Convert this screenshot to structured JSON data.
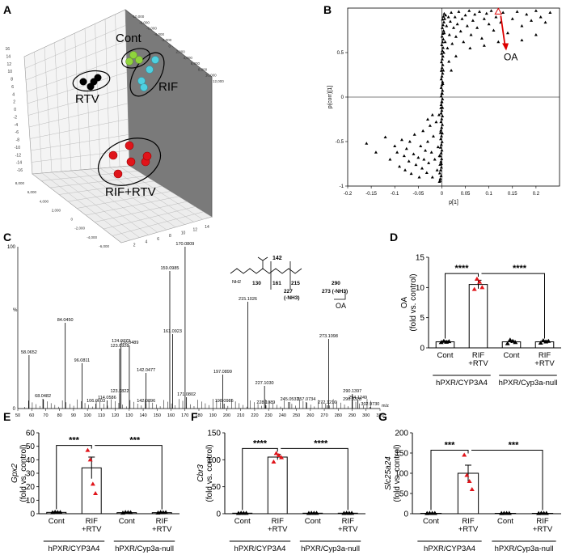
{
  "panel_labels": [
    "A",
    "B",
    "C",
    "D",
    "E",
    "F",
    "G"
  ],
  "panel_a": {
    "groups": [
      {
        "label": "Cont",
        "color": "#8fd43c"
      },
      {
        "label": "RIF",
        "color": "#4fd0e0"
      },
      {
        "label": "RTV",
        "color": "#000000"
      },
      {
        "label": "RIF+RTV",
        "color": "#e0141a"
      }
    ],
    "tick_labels_x": [
      "-10,000",
      "-8,000",
      "-6,000",
      "-4,000",
      "-2,000",
      "0",
      "2,000",
      "4,000",
      "6,000",
      "8,000",
      "10,000",
      "12,000"
    ],
    "tick_labels_y": [
      "16",
      "14",
      "12",
      "10",
      "8",
      "6",
      "4",
      "2",
      "0",
      "-2",
      "-4",
      "-6",
      "-8",
      "-10",
      "-12",
      "-14",
      "-16"
    ],
    "tick_labels_z": [
      "8,000",
      "6,000",
      "4,000",
      "2,000",
      "0",
      "-2,000",
      "-4,000",
      "-6,000"
    ]
  },
  "chart_data": [
    {
      "panel": "B",
      "type": "scatter",
      "title": "",
      "xlabel": "p[1]",
      "ylabel": "p(corr)[1]",
      "xlim": [
        -0.2,
        0.25
      ],
      "ylim": [
        -1,
        1
      ],
      "x_ticks": [
        "-0.2",
        "-0.15",
        "-0.1",
        "-0.05",
        "0",
        "0.05",
        "0.1",
        "0.15",
        "0.2"
      ],
      "y_ticks": [
        "-1",
        "-0.5",
        "0",
        "0.5"
      ],
      "annotation": "OA",
      "highlight": {
        "x": 0.12,
        "y": 0.96
      },
      "points": [
        [
          -0.16,
          -0.52
        ],
        [
          -0.14,
          -0.62
        ],
        [
          -0.12,
          -0.45
        ],
        [
          -0.11,
          -0.7
        ],
        [
          -0.1,
          -0.55
        ],
        [
          -0.095,
          -0.62
        ],
        [
          -0.09,
          -0.78
        ],
        [
          -0.085,
          -0.48
        ],
        [
          -0.08,
          -0.66
        ],
        [
          -0.078,
          -0.82
        ],
        [
          -0.075,
          -0.58
        ],
        [
          -0.07,
          -0.72
        ],
        [
          -0.068,
          -0.5
        ],
        [
          -0.065,
          -0.86
        ],
        [
          -0.06,
          -0.64
        ],
        [
          -0.058,
          -0.42
        ],
        [
          -0.055,
          -0.76
        ],
        [
          -0.05,
          -0.68
        ],
        [
          -0.048,
          -0.9
        ],
        [
          -0.045,
          -0.55
        ],
        [
          -0.042,
          -0.8
        ],
        [
          -0.04,
          -0.38
        ],
        [
          -0.038,
          -0.7
        ],
        [
          -0.035,
          -0.6
        ],
        [
          -0.032,
          -0.85
        ],
        [
          -0.03,
          -0.5
        ],
        [
          -0.028,
          -0.74
        ],
        [
          -0.025,
          -0.32
        ],
        [
          -0.022,
          -0.62
        ],
        [
          -0.02,
          -0.9
        ],
        [
          -0.018,
          -0.44
        ],
        [
          -0.015,
          -0.7
        ],
        [
          -0.012,
          -0.28
        ],
        [
          -0.01,
          -0.82
        ],
        [
          -0.008,
          -0.56
        ],
        [
          -0.006,
          -0.2
        ],
        [
          -0.005,
          -0.66
        ],
        [
          -0.004,
          -0.94
        ],
        [
          -0.003,
          -0.4
        ],
        [
          -0.002,
          -0.12
        ],
        [
          -0.001,
          -0.75
        ],
        [
          0,
          -0.05
        ],
        [
          0.001,
          0.04
        ],
        [
          0.002,
          0.15
        ],
        [
          0.003,
          0.3
        ],
        [
          0.004,
          0.5
        ],
        [
          0.005,
          0.72
        ],
        [
          0.006,
          0.88
        ],
        [
          0.007,
          0.62
        ],
        [
          0.008,
          0.92
        ],
        [
          0.01,
          0.8
        ],
        [
          0.012,
          0.55
        ],
        [
          0.014,
          0.9
        ],
        [
          0.016,
          0.7
        ],
        [
          0.018,
          0.85
        ],
        [
          0.02,
          0.95
        ],
        [
          0.022,
          0.6
        ],
        [
          0.025,
          0.78
        ],
        [
          0.028,
          0.9
        ],
        [
          0.03,
          0.68
        ],
        [
          0.033,
          0.82
        ],
        [
          0.036,
          0.96
        ],
        [
          0.04,
          0.74
        ],
        [
          0.043,
          0.88
        ],
        [
          0.046,
          0.62
        ],
        [
          0.05,
          0.92
        ],
        [
          0.054,
          0.8
        ],
        [
          0.058,
          0.97
        ],
        [
          0.062,
          0.7
        ],
        [
          0.066,
          0.86
        ],
        [
          0.07,
          0.93
        ],
        [
          0.075,
          0.78
        ],
        [
          0.08,
          0.96
        ],
        [
          0.085,
          0.66
        ],
        [
          0.09,
          0.88
        ],
        [
          0.095,
          0.94
        ],
        [
          0.1,
          0.82
        ],
        [
          0.105,
          0.97
        ],
        [
          0.11,
          0.75
        ],
        [
          0.115,
          0.9
        ],
        [
          0.125,
          0.84
        ],
        [
          0.13,
          0.95
        ],
        [
          0.14,
          0.72
        ],
        [
          0.15,
          0.88
        ],
        [
          0.16,
          0.96
        ],
        [
          0.17,
          0.8
        ],
        [
          0.18,
          0.93
        ],
        [
          0.19,
          0.86
        ],
        [
          0.2,
          0.97
        ],
        [
          0.21,
          0.9
        ],
        [
          0.22,
          0.84
        ],
        [
          0.23,
          0.95
        ],
        [
          0.015,
          0.4
        ],
        [
          0.02,
          0.3
        ],
        [
          0.03,
          0.46
        ],
        [
          -0.02,
          -0.2
        ],
        [
          -0.03,
          -0.25
        ],
        [
          0.06,
          0.55
        ],
        [
          0.09,
          0.58
        ],
        [
          0.12,
          0.62
        ],
        [
          0.17,
          0.64
        ],
        [
          0.2,
          0.7
        ]
      ]
    },
    {
      "panel": "C",
      "type": "bar",
      "title": "",
      "xlabel": "m/z",
      "ylabel": "%",
      "xlim": [
        50,
        310
      ],
      "ylim": [
        0,
        100
      ],
      "x_ticks": [
        "50",
        "60",
        "70",
        "80",
        "90",
        "100",
        "110",
        "120",
        "130",
        "140",
        "150",
        "160",
        "170",
        "180",
        "190",
        "200",
        "210",
        "220",
        "230",
        "240",
        "250",
        "260",
        "270",
        "280",
        "290",
        "300",
        "310"
      ],
      "y_ticks": [
        "0",
        "100"
      ],
      "peaks": [
        {
          "mz": 58.0652,
          "rel": 33,
          "label": "58.0652"
        },
        {
          "mz": 68.0482,
          "rel": 6,
          "label": "68.0482"
        },
        {
          "mz": 84.045,
          "rel": 53,
          "label": "84.0450"
        },
        {
          "mz": 96.0811,
          "rel": 28,
          "label": "96.0811"
        },
        {
          "mz": 106.0603,
          "rel": 3,
          "label": "106.0603"
        },
        {
          "mz": 114.0586,
          "rel": 5,
          "label": "114.0586"
        },
        {
          "mz": 123.0822,
          "rel": 9,
          "label": "123.0822"
        },
        {
          "mz": 123.0928,
          "rel": 37,
          "label": "123.0928"
        },
        {
          "mz": 124.0773,
          "rel": 40,
          "label": "124.0773"
        },
        {
          "mz": 130.0489,
          "rel": 39,
          "label": "130.0489"
        },
        {
          "mz": 142.0477,
          "rel": 22,
          "label": "142.0477"
        },
        {
          "mz": 142.0896,
          "rel": 3,
          "label": "142.0896"
        },
        {
          "mz": 159.0985,
          "rel": 85,
          "label": "159.0985"
        },
        {
          "mz": 161.0923,
          "rel": 46,
          "label": "161.0923"
        },
        {
          "mz": 170.0809,
          "rel": 100,
          "label": "170.0809"
        },
        {
          "mz": 171.0802,
          "rel": 7,
          "label": "171.0802"
        },
        {
          "mz": 197.0899,
          "rel": 21,
          "label": "197.0899"
        },
        {
          "mz": 198.0985,
          "rel": 3,
          "label": "198.0985"
        },
        {
          "mz": 215.1026,
          "rel": 66,
          "label": "215.1026"
        },
        {
          "mz": 227.103,
          "rel": 14,
          "label": "227.1030"
        },
        {
          "mz": 228.1089,
          "rel": 2,
          "label": "228.1089"
        },
        {
          "mz": 245.0533,
          "rel": 4,
          "label": "245.0533"
        },
        {
          "mz": 257.0734,
          "rel": 4,
          "label": "257.0734"
        },
        {
          "mz": 272.1216,
          "rel": 2,
          "label": "272.1216"
        },
        {
          "mz": 273.1098,
          "rel": 43,
          "label": "273.1098"
        },
        {
          "mz": 290.0328,
          "rel": 4,
          "label": "290.0328"
        },
        {
          "mz": 290.1397,
          "rel": 9,
          "label": "290.1397"
        },
        {
          "mz": 294.1249,
          "rel": 5,
          "label": "294.1249"
        },
        {
          "mz": 302.973,
          "rel": 1,
          "label": "302.9730"
        }
      ],
      "structure": {
        "frag_labels": [
          "142",
          "130",
          "161",
          "215",
          "227\n(-NH3)",
          "290",
          "273 (-NH3)"
        ],
        "name": "OA"
      }
    },
    {
      "panel": "D",
      "type": "bar",
      "title": "",
      "ylabel": "OA\n(fold vs. control)",
      "ylim": [
        0,
        15
      ],
      "y_ticks": [
        "0",
        "5",
        "10",
        "15"
      ],
      "categories": [
        "Cont",
        "RIF\n+RTV",
        "Cont",
        "RIF\n+RTV"
      ],
      "group_labels": [
        "hPXR/CYP3A4",
        "hPXR/Cyp3a-null"
      ],
      "values": [
        1.0,
        10.5,
        1.0,
        1.0
      ],
      "sem": [
        0.15,
        0.7,
        0.2,
        0.2
      ],
      "points": [
        [
          0.9,
          1.1,
          0.95,
          1.05
        ],
        [
          9.7,
          11.4,
          10.9,
          10.0
        ],
        [
          0.7,
          1.3,
          1.1,
          0.9
        ],
        [
          0.8,
          1.2,
          1.0,
          1.1
        ]
      ],
      "sig": [
        "****",
        "****"
      ]
    },
    {
      "panel": "E",
      "type": "bar",
      "title": "",
      "ylabel": "Gpx2\n(fold vs. control)",
      "ylim": [
        0,
        60
      ],
      "y_ticks": [
        "0",
        "10",
        "20",
        "30",
        "40",
        "50",
        "60"
      ],
      "categories": [
        "Cont",
        "RIF\n+RTV",
        "Cont",
        "RIF\n+RTV"
      ],
      "group_labels": [
        "hPXR/CYP3A4",
        "hPXR/Cyp3a-null"
      ],
      "values": [
        1.0,
        34,
        0.8,
        0.8
      ],
      "sem": [
        0.3,
        8,
        0.3,
        0.3
      ],
      "points": [
        [
          0.8,
          1.2,
          1.0,
          1.0
        ],
        [
          47,
          40,
          22,
          15
        ],
        [
          0.5,
          1.0,
          0.9,
          0.8
        ],
        [
          0.6,
          1.0,
          0.8,
          0.9
        ]
      ],
      "sig": [
        "***",
        "***"
      ]
    },
    {
      "panel": "F",
      "type": "bar",
      "title": "",
      "ylabel": "Cbr3\n(fold vs. control)",
      "ylim": [
        0,
        150
      ],
      "y_ticks": [
        "0",
        "50",
        "100",
        "150"
      ],
      "categories": [
        "Cont",
        "RIF\n+RTV",
        "Cont",
        "RIF\n+RTV"
      ],
      "group_labels": [
        "hPXR/CYP3A4",
        "hPXR/Cyp3a-null"
      ],
      "values": [
        1.0,
        105,
        1.0,
        1.0
      ],
      "sem": [
        0.3,
        5,
        0.3,
        0.3
      ],
      "points": [
        [
          0.8,
          1.2,
          1.0,
          1.0
        ],
        [
          96,
          112,
          108,
          104
        ],
        [
          0.7,
          1.1,
          1.0,
          0.9
        ],
        [
          0.8,
          1.2,
          1.0,
          1.0
        ]
      ],
      "sig": [
        "****",
        "****"
      ]
    },
    {
      "panel": "G",
      "type": "bar",
      "title": "",
      "ylabel": "Slc25a24\n(fold vs. control)",
      "ylim": [
        0,
        200
      ],
      "y_ticks": [
        "0",
        "50",
        "100",
        "150",
        "200"
      ],
      "categories": [
        "Cont",
        "RIF\n+RTV",
        "Cont",
        "RIF\n+RTV"
      ],
      "group_labels": [
        "hPXR/CYP3A4",
        "hPXR/Cyp3a-null"
      ],
      "values": [
        1.0,
        100,
        1.0,
        1.0
      ],
      "sem": [
        0.3,
        20,
        0.3,
        0.3
      ],
      "points": [
        [
          0.8,
          1.2,
          1.0,
          1.0
        ],
        [
          145,
          95,
          80,
          60
        ],
        [
          0.7,
          1.1,
          1.0,
          0.9
        ],
        [
          0.8,
          1.2,
          1.0,
          1.0
        ]
      ],
      "sig": [
        "***",
        "***"
      ]
    }
  ]
}
